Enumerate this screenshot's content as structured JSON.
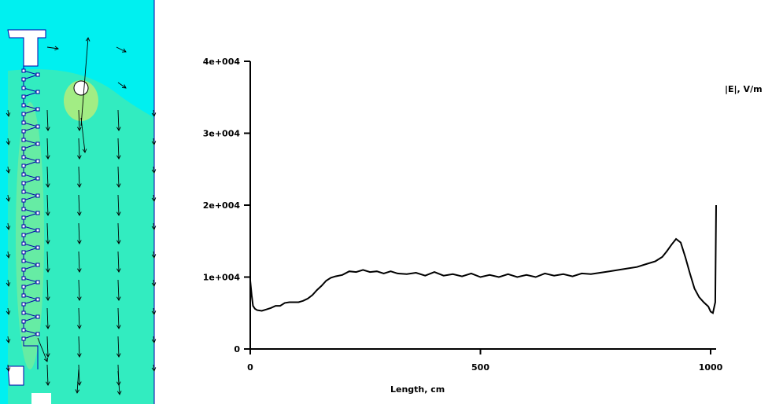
{
  "colors": {
    "field_high": "#2ee8c9",
    "field_mid": "#32ecc0",
    "field_low": "#00f0f0",
    "field_hot": "#c8ee70",
    "outline": "#0000aa",
    "arrow": "#000000",
    "curve": "#000000"
  },
  "field_view": {
    "arrow_icon": "down-arrow-vector",
    "probe_icon": "circle-probe"
  },
  "chart_data": {
    "type": "line",
    "ylabel": "|E|, V/m",
    "xlabel": "Length, cm",
    "xlim": [
      0,
      1000
    ],
    "ylim": [
      0,
      40000
    ],
    "xticks": [
      {
        "value": 0,
        "label": "0"
      },
      {
        "value": 500,
        "label": "500"
      },
      {
        "value": 1000,
        "label": "1000"
      }
    ],
    "yticks": [
      {
        "value": 0,
        "label": "0"
      },
      {
        "value": 10000,
        "label": "1e+004"
      },
      {
        "value": 20000,
        "label": "2e+004"
      },
      {
        "value": 30000,
        "label": "3e+004"
      },
      {
        "value": 40000,
        "label": "4e+004"
      }
    ],
    "grid": false,
    "series": [
      {
        "x": [
          0,
          3,
          6,
          10,
          15,
          25,
          35,
          45,
          55,
          65,
          75,
          85,
          95,
          105,
          115,
          125,
          135,
          145,
          155,
          165,
          175,
          185,
          200,
          215,
          230,
          245,
          260,
          275,
          290,
          305,
          320,
          340,
          360,
          380,
          400,
          420,
          440,
          460,
          480,
          500,
          520,
          540,
          560,
          580,
          600,
          620,
          640,
          660,
          680,
          700,
          720,
          740,
          760,
          780,
          800,
          820,
          840,
          860,
          880,
          895,
          905,
          915,
          925,
          935,
          945,
          955,
          965,
          975,
          985,
          995,
          1000,
          1005,
          1010,
          1012
        ],
        "y": [
          9500,
          7500,
          6000,
          5600,
          5400,
          5300,
          5500,
          5700,
          6000,
          6000,
          6400,
          6500,
          6500,
          6500,
          6700,
          7000,
          7500,
          8200,
          8800,
          9500,
          9900,
          10100,
          10300,
          10800,
          10700,
          11000,
          10700,
          10800,
          10500,
          10800,
          10500,
          10400,
          10600,
          10200,
          10700,
          10200,
          10400,
          10100,
          10500,
          10000,
          10300,
          10000,
          10400,
          10000,
          10300,
          10000,
          10500,
          10200,
          10400,
          10100,
          10500,
          10400,
          10600,
          10800,
          11000,
          11200,
          11400,
          11800,
          12200,
          12800,
          13600,
          14500,
          15300,
          14800,
          12800,
          10500,
          8400,
          7200,
          6500,
          5900,
          5200,
          5000,
          6500,
          20000
        ]
      }
    ]
  }
}
